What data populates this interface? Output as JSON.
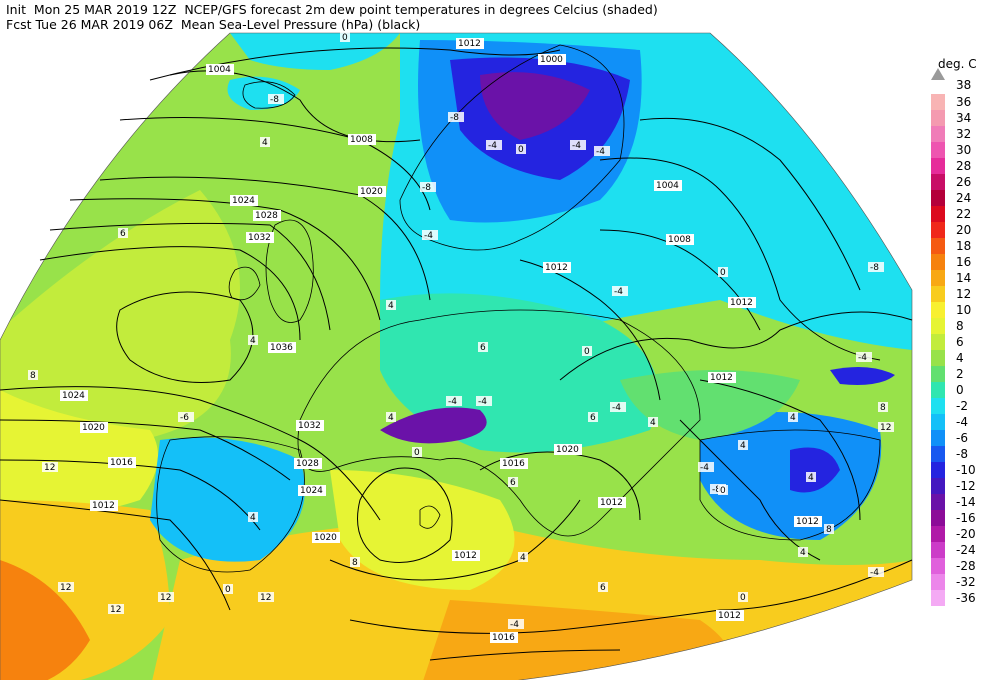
{
  "header": {
    "line1": "Init  Mon 25 MAR 2019 12Z  NCEP/GFS forecast 2m dew point temperatures in degrees Celcius (shaded)",
    "line2": "Fcst Tue 26 MAR 2019 06Z  Mean Sea-Level Pressure (hPa) (black)"
  },
  "legend": {
    "unit": "deg. C",
    "top_value": "38",
    "levels": [
      {
        "label": "36",
        "color": "#f8b4b4"
      },
      {
        "label": "34",
        "color": "#f49ab0"
      },
      {
        "label": "32",
        "color": "#f07cb8"
      },
      {
        "label": "30",
        "color": "#ee55b0"
      },
      {
        "label": "28",
        "color": "#e62c9a"
      },
      {
        "label": "26",
        "color": "#c80e66"
      },
      {
        "label": "24",
        "color": "#b4003a"
      },
      {
        "label": "22",
        "color": "#dc0a1e"
      },
      {
        "label": "20",
        "color": "#f0281a"
      },
      {
        "label": "18",
        "color": "#f55a12"
      },
      {
        "label": "16",
        "color": "#f6820e"
      },
      {
        "label": "14",
        "color": "#f8a814"
      },
      {
        "label": "12",
        "color": "#f8cc1e"
      },
      {
        "label": "10",
        "color": "#f8f030"
      },
      {
        "label": "8",
        "color": "#e6f434"
      },
      {
        "label": "6",
        "color": "#c2ec3c"
      },
      {
        "label": "4",
        "color": "#98e24a"
      },
      {
        "label": "2",
        "color": "#62e070"
      },
      {
        "label": "0",
        "color": "#30e6b0"
      },
      {
        "label": "-2",
        "color": "#1ee0f0"
      },
      {
        "label": "-4",
        "color": "#14c0f8"
      },
      {
        "label": "-6",
        "color": "#1090f8"
      },
      {
        "label": "-8",
        "color": "#1858f0"
      },
      {
        "label": "-10",
        "color": "#2424e0"
      },
      {
        "label": "-12",
        "color": "#4418c0"
      },
      {
        "label": "-14",
        "color": "#6a12a8"
      },
      {
        "label": "-16",
        "color": "#8c0c98"
      },
      {
        "label": "-20",
        "color": "#b01aa8"
      },
      {
        "label": "-24",
        "color": "#cc3cc8"
      },
      {
        "label": "-28",
        "color": "#e060dc"
      },
      {
        "label": "-32",
        "color": "#ec86ea"
      },
      {
        "label": "-36",
        "color": "#f4aaf4"
      }
    ]
  },
  "map": {
    "isobar_labels": [
      "1012",
      "1004",
      "1008",
      "1020",
      "1024",
      "1028",
      "1032",
      "1036",
      "1024",
      "1020",
      "1016",
      "1012",
      "1032",
      "1028",
      "1024",
      "1020",
      "1012",
      "1016",
      "1012",
      "1020",
      "1016",
      "1012",
      "1012",
      "1012",
      "1012",
      "1008",
      "1004",
      "1000",
      "1012"
    ],
    "temperature_labels": [
      "-8",
      "0",
      "4",
      "4",
      "6",
      "4",
      "8",
      "12",
      "-8",
      "-4",
      "-8",
      "-4",
      "0",
      "-4",
      "-4",
      "-4",
      "-4",
      "-4",
      "4",
      "0",
      "6",
      "0",
      "-4",
      "0",
      "4",
      "-4",
      "-8",
      "4",
      "0",
      "8",
      "4",
      "4",
      "-4",
      "8",
      "12",
      "6",
      "12",
      "4",
      "8",
      "12",
      "0",
      "12",
      "12",
      "6",
      "0",
      "-4",
      "-4",
      "-8",
      "-6",
      "6",
      "4",
      "4"
    ]
  }
}
